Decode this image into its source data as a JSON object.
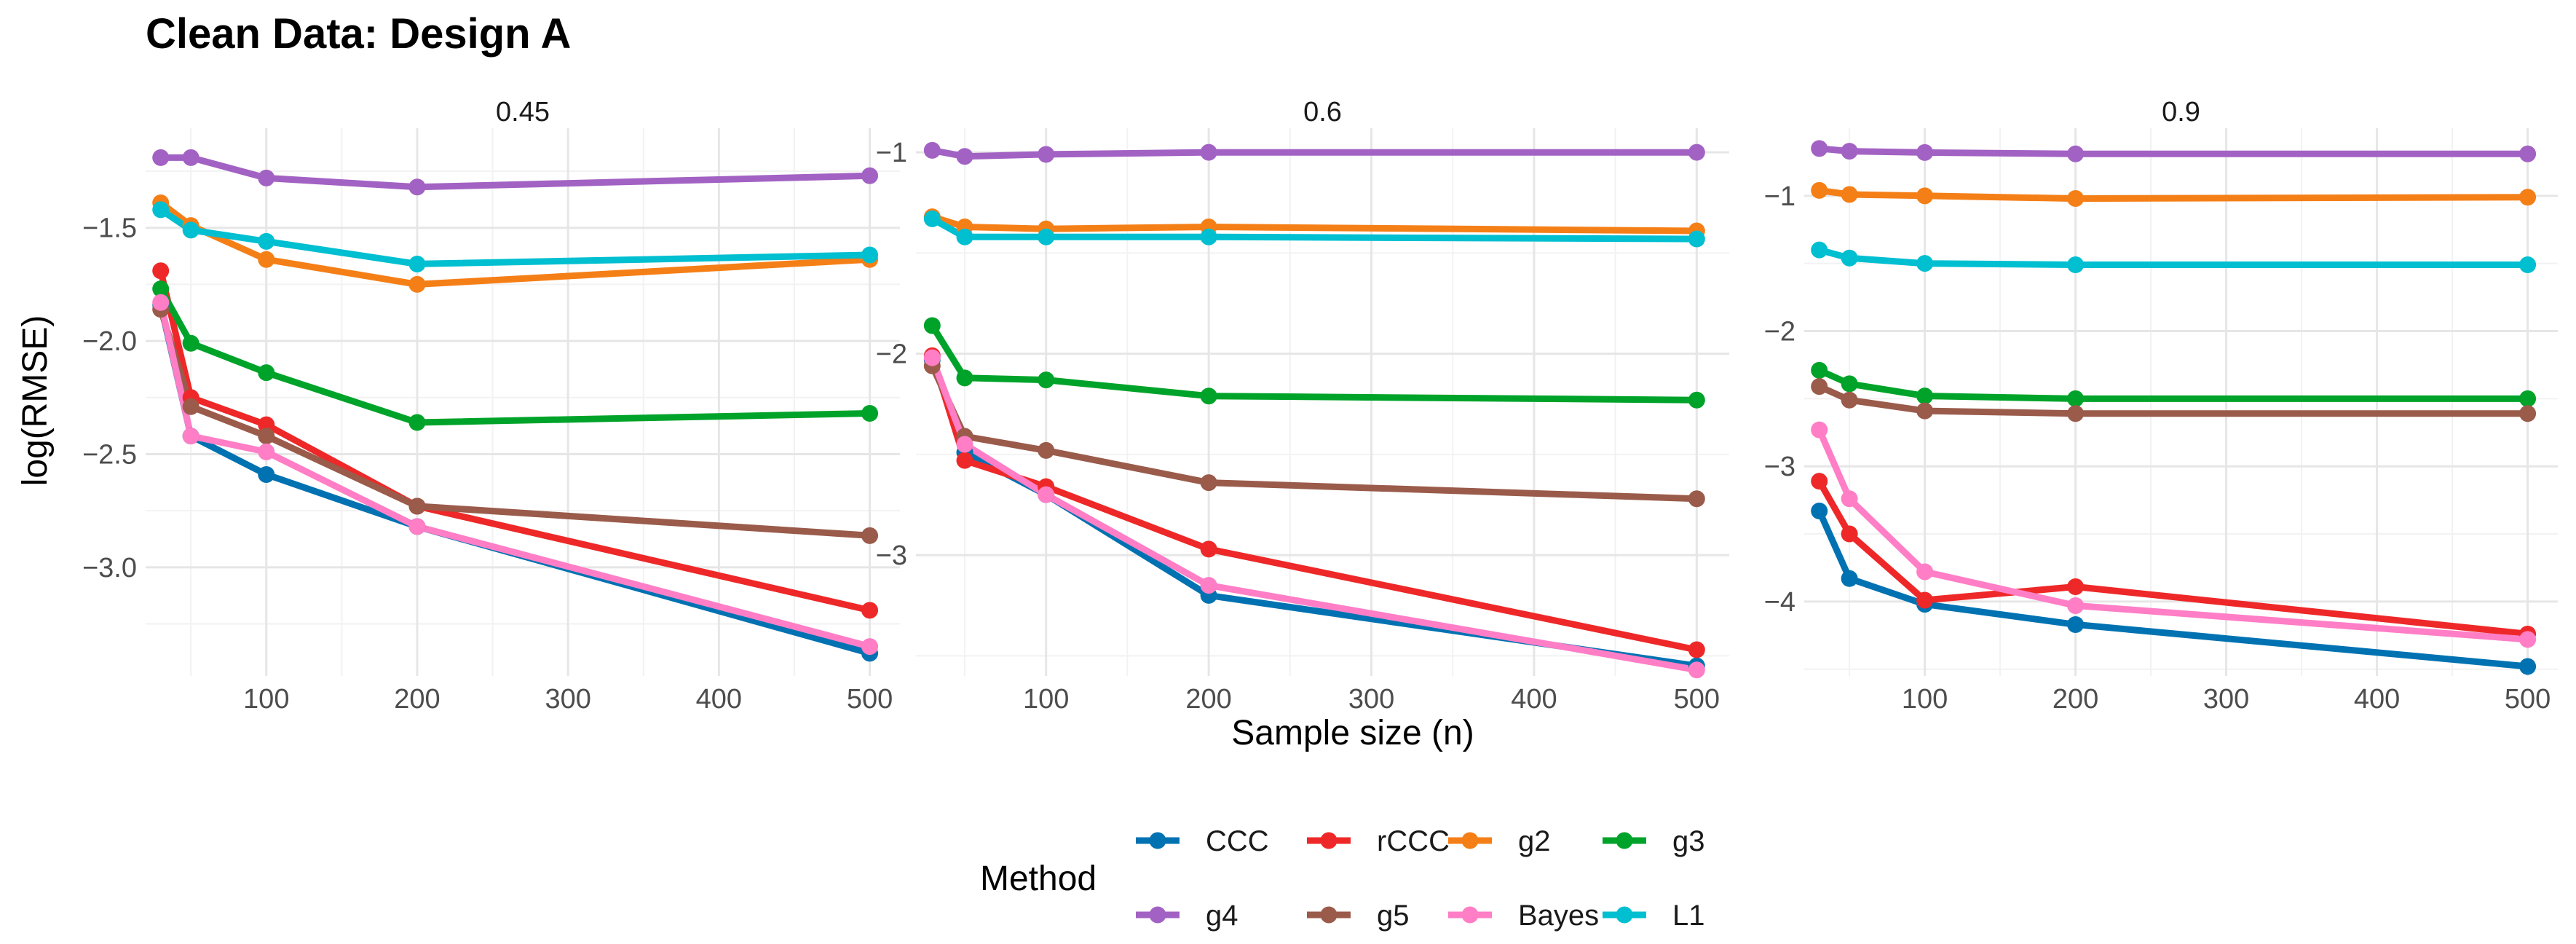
{
  "chart_data": {
    "type": "line",
    "title": "Clean Data: Design A",
    "xlabel": "Sample size (n)",
    "ylabel": "log(RMSE)",
    "legend": {
      "title": "Method",
      "position": "bottom"
    },
    "x": [
      30,
      50,
      100,
      200,
      500
    ],
    "x_ticks": [
      100,
      200,
      300,
      400,
      500
    ],
    "xlim": [
      20,
      520
    ],
    "series_order": [
      "CCC",
      "rCCC",
      "g2",
      "g3",
      "g4",
      "g5",
      "Bayes",
      "L1"
    ],
    "colors": {
      "CCC": "#0072B2",
      "rCCC": "#EE2828",
      "g2": "#F57F17",
      "g3": "#00A32A",
      "g4": "#A262C3",
      "g5": "#9A5B4B",
      "Bayes": "#FF7EC6",
      "L1": "#00BFD0"
    },
    "panels": [
      {
        "label": "0.45",
        "ylim": [
          -3.48,
          -1.06
        ],
        "y_ticks": [
          -1.5,
          -2.0,
          -2.5,
          -3.0
        ],
        "y_tick_labels": [
          "−1.5",
          "−2.0",
          "−2.5",
          "−3.0"
        ],
        "series": [
          {
            "name": "CCC",
            "values": [
              -1.84,
              -2.42,
              -2.59,
              -2.82,
              -3.38
            ]
          },
          {
            "name": "rCCC",
            "values": [
              -1.69,
              -2.25,
              -2.37,
              -2.73,
              -3.19
            ]
          },
          {
            "name": "g2",
            "values": [
              -1.39,
              -1.49,
              -1.64,
              -1.75,
              -1.64
            ]
          },
          {
            "name": "g3",
            "values": [
              -1.77,
              -2.01,
              -2.14,
              -2.36,
              -2.32
            ]
          },
          {
            "name": "g4",
            "values": [
              -1.19,
              -1.19,
              -1.28,
              -1.32,
              -1.27
            ]
          },
          {
            "name": "g5",
            "values": [
              -1.86,
              -2.29,
              -2.42,
              -2.73,
              -2.86
            ]
          },
          {
            "name": "Bayes",
            "values": [
              -1.83,
              -2.42,
              -2.49,
              -2.82,
              -3.35
            ]
          },
          {
            "name": "L1",
            "values": [
              -1.42,
              -1.51,
              -1.56,
              -1.66,
              -1.62
            ]
          }
        ]
      },
      {
        "label": "0.6",
        "ylim": [
          -3.6,
          -0.88
        ],
        "y_ticks": [
          -1,
          -2,
          -3
        ],
        "y_tick_labels": [
          "−1",
          "−2",
          "−3"
        ],
        "series": [
          {
            "name": "CCC",
            "values": [
              -2.03,
              -2.49,
              -2.7,
              -3.2,
              -3.55
            ]
          },
          {
            "name": "rCCC",
            "values": [
              -2.01,
              -2.53,
              -2.66,
              -2.97,
              -3.47
            ]
          },
          {
            "name": "g2",
            "values": [
              -1.32,
              -1.37,
              -1.38,
              -1.37,
              -1.39
            ]
          },
          {
            "name": "g3",
            "values": [
              -1.86,
              -2.12,
              -2.13,
              -2.21,
              -2.23
            ]
          },
          {
            "name": "g4",
            "values": [
              -0.99,
              -1.02,
              -1.01,
              -1.0,
              -1.0
            ]
          },
          {
            "name": "g5",
            "values": [
              -2.06,
              -2.41,
              -2.48,
              -2.64,
              -2.72
            ]
          },
          {
            "name": "Bayes",
            "values": [
              -2.02,
              -2.45,
              -2.7,
              -3.15,
              -3.57
            ]
          },
          {
            "name": "L1",
            "values": [
              -1.33,
              -1.42,
              -1.42,
              -1.42,
              -1.43
            ]
          }
        ]
      },
      {
        "label": "0.9",
        "ylim": [
          -4.55,
          -0.5
        ],
        "y_ticks": [
          -1,
          -2,
          -3,
          -4
        ],
        "y_tick_labels": [
          "−1",
          "−2",
          "−3",
          "−4"
        ],
        "series": [
          {
            "name": "CCC",
            "values": [
              -3.33,
              -3.83,
              -4.02,
              -4.17,
              -4.48
            ]
          },
          {
            "name": "rCCC",
            "values": [
              -3.11,
              -3.5,
              -3.99,
              -3.89,
              -4.24
            ]
          },
          {
            "name": "g2",
            "values": [
              -0.96,
              -0.99,
              -1.0,
              -1.02,
              -1.01
            ]
          },
          {
            "name": "g3",
            "values": [
              -2.29,
              -2.39,
              -2.48,
              -2.5,
              -2.5
            ]
          },
          {
            "name": "g4",
            "values": [
              -0.65,
              -0.67,
              -0.68,
              -0.69,
              -0.69
            ]
          },
          {
            "name": "g5",
            "values": [
              -2.41,
              -2.51,
              -2.59,
              -2.61,
              -2.61
            ]
          },
          {
            "name": "Bayes",
            "values": [
              -2.73,
              -3.24,
              -3.78,
              -4.03,
              -4.28
            ]
          },
          {
            "name": "L1",
            "values": [
              -1.4,
              -1.46,
              -1.5,
              -1.51,
              -1.51
            ]
          }
        ]
      }
    ]
  }
}
